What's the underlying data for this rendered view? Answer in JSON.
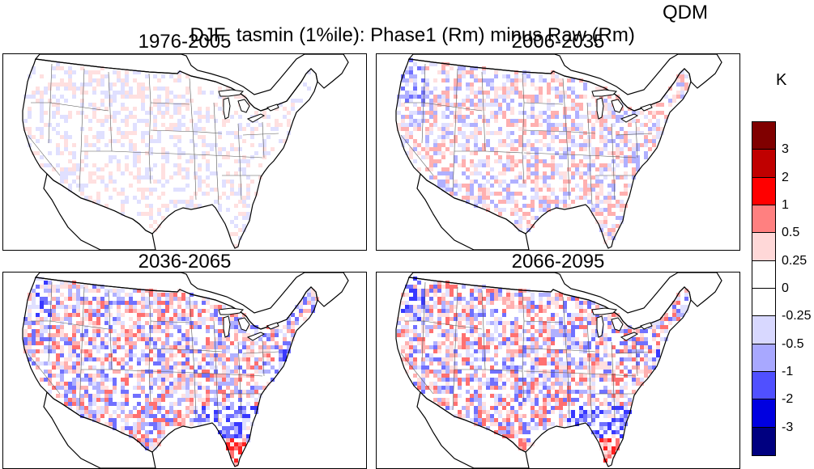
{
  "title": {
    "main": "DJF  tasmin (1%ile): Phase1 (Rm) minus Raw (Rm)",
    "method": "QDM"
  },
  "colorbar": {
    "unit": "K",
    "labels": [
      "3",
      "2",
      "1",
      "0.5",
      "0.25",
      "0",
      "-0.25",
      "-0.5",
      "-1",
      "-2",
      "-3"
    ],
    "colors": [
      "#800000",
      "#c00000",
      "#ff0000",
      "#ff8080",
      "#ffd8d8",
      "#ffffff",
      "#ffffff",
      "#d8d8ff",
      "#a8a8ff",
      "#5050ff",
      "#0000e0",
      "#000080"
    ]
  },
  "panels": [
    {
      "period": "1976-2005",
      "dominant_sign": "mixed-weak"
    },
    {
      "period": "2006-2035",
      "dominant_sign": "mixed"
    },
    {
      "period": "2036-2065",
      "dominant_sign": "mixed-strong"
    },
    {
      "period": "2066-2095",
      "dominant_sign": "mixed-strong"
    }
  ]
}
